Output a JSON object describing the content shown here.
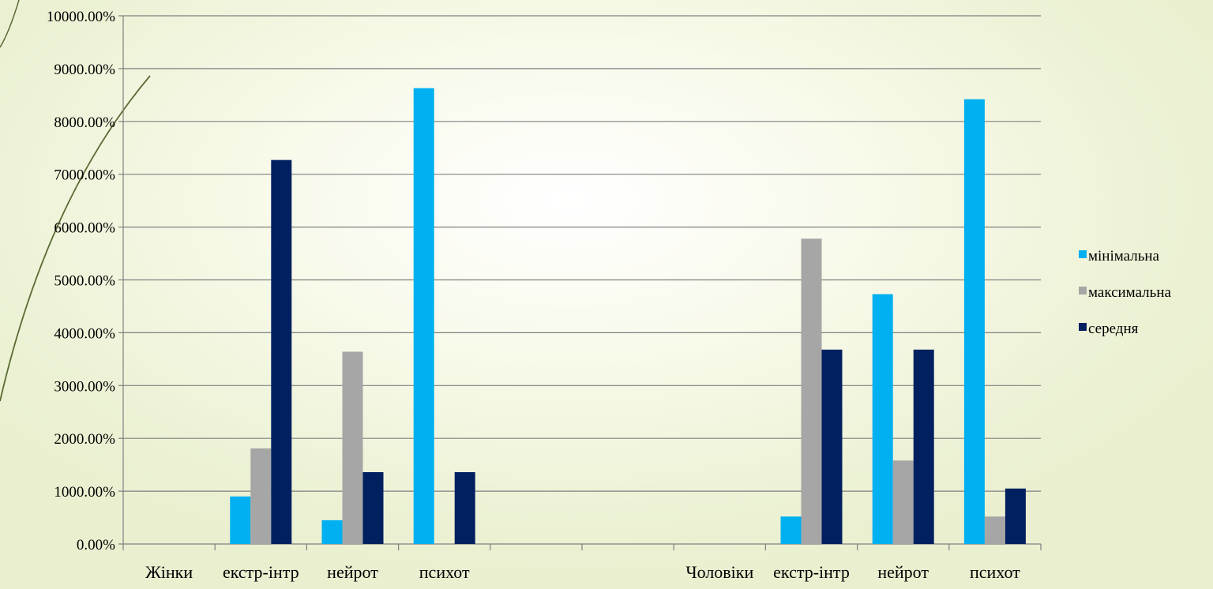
{
  "chart_data": {
    "type": "bar",
    "categories": [
      "Жінки",
      "екстр-інтр",
      "нейрот",
      "психот",
      "",
      "",
      "Чоловіки",
      "екстр-інтр",
      "нейрот",
      "психот"
    ],
    "series": [
      {
        "name": "мінімальна",
        "color": "#00B0F0",
        "values": [
          0,
          900,
          450,
          8630,
          0,
          0,
          0,
          520,
          4730,
          8420
        ]
      },
      {
        "name": "максимальна",
        "color": "#A6A6A6",
        "values": [
          0,
          1810,
          3640,
          0,
          0,
          0,
          0,
          5780,
          1580,
          520
        ]
      },
      {
        "name": "середня",
        "color": "#002060",
        "values": [
          0,
          7270,
          1360,
          1360,
          0,
          0,
          0,
          3680,
          3680,
          1050
        ]
      }
    ],
    "y_ticks": [
      "0.00%",
      "1000.00%",
      "2000.00%",
      "3000.00%",
      "4000.00%",
      "5000.00%",
      "6000.00%",
      "7000.00%",
      "8000.00%",
      "9000.00%",
      "10000.00%"
    ],
    "ylim": [
      0,
      10000
    ],
    "y_step": 1000,
    "grid": true,
    "legend_position": "right"
  }
}
